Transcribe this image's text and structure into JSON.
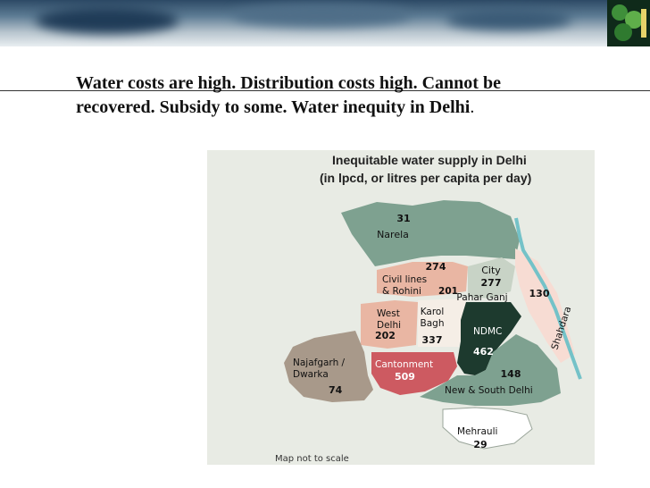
{
  "slide": {
    "title_bold": "Water costs are high. Distribution costs high. Cannot be recovered. Subsidy to some. Water inequity in Delhi",
    "title_tail": "."
  },
  "map": {
    "heading_line1": "Inequitable water supply in Delhi",
    "heading_line2": "(in lpcd, or litres per capita per day)",
    "footnote": "Map not to scale",
    "regions": [
      {
        "name": "Narela",
        "value": "31"
      },
      {
        "name": "Civil lines & Rohini",
        "value": "274"
      },
      {
        "name": "City",
        "value": "277"
      },
      {
        "name": "Pahar Ganj",
        "value": "201"
      },
      {
        "name": "Shahdara",
        "value": "130"
      },
      {
        "name": "West Delhi",
        "value": "202"
      },
      {
        "name": "Karol Bagh",
        "value": "337"
      },
      {
        "name": "NDMC",
        "value": "462"
      },
      {
        "name": "Najafgarh / Dwarka",
        "value": "74"
      },
      {
        "name": "Cantonment",
        "value": "509"
      },
      {
        "name": "New & South Delhi",
        "value": "148"
      },
      {
        "name": "Mehrauli",
        "value": "29"
      }
    ],
    "colors": {
      "green": "#7ea190",
      "lightgreen": "#c8d3c6",
      "pink": "#e9b6a3",
      "lightpink": "#f7dcd3",
      "tan": "#a8998a",
      "red": "#cd5a61",
      "dark": "#1d3a2e",
      "cream": "#f5eee6",
      "white": "#ffffff",
      "river": "#74c2c8"
    }
  }
}
